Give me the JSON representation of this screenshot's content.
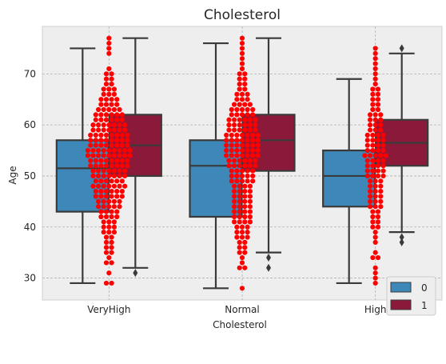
{
  "chart_data": {
    "type": "box",
    "title": "Cholesterol",
    "xlabel": "Cholesterol",
    "ylabel": "Age",
    "categories": [
      "VeryHigh",
      "Normal",
      "High"
    ],
    "ylim": [
      25.7,
      79.3
    ],
    "yticks": [
      30,
      40,
      50,
      60,
      70
    ],
    "grid": true,
    "legend": {
      "placement": "lower-right",
      "title": ""
    },
    "colors": {
      "0": "#3d88b8",
      "1": "#8b1a3a",
      "points": "#ff0000",
      "background": "#eeeeee"
    },
    "series": [
      {
        "name": "0",
        "boxes": [
          {
            "category": "VeryHigh",
            "min": 29,
            "q1": 43,
            "median": 51.5,
            "q3": 57,
            "max": 75,
            "outliers": []
          },
          {
            "category": "Normal",
            "min": 28,
            "q1": 42,
            "median": 52,
            "q3": 57,
            "max": 76,
            "outliers": []
          },
          {
            "category": "High",
            "min": 29,
            "q1": 44,
            "median": 50,
            "q3": 55,
            "max": 69,
            "outliers": []
          }
        ]
      },
      {
        "name": "1",
        "boxes": [
          {
            "category": "VeryHigh",
            "min": 32,
            "q1": 50,
            "median": 56,
            "q3": 62,
            "max": 77,
            "outliers": [
              31
            ]
          },
          {
            "category": "Normal",
            "min": 35,
            "q1": 51,
            "median": 57,
            "q3": 62,
            "max": 77,
            "outliers": [
              34,
              32
            ]
          },
          {
            "category": "High",
            "min": 39,
            "q1": 52,
            "median": 56.5,
            "q3": 61,
            "max": 74,
            "outliers": [
              75,
              38,
              37
            ]
          }
        ]
      }
    ],
    "swarm": [
      {
        "category": "VeryHigh",
        "ages": [
          29,
          29,
          31,
          33,
          33,
          34,
          35,
          35,
          36,
          36,
          37,
          37,
          38,
          38,
          39,
          39,
          39,
          40,
          40,
          40,
          41,
          41,
          41,
          42,
          42,
          42,
          42,
          43,
          43,
          43,
          43,
          44,
          44,
          44,
          44,
          44,
          45,
          45,
          45,
          45,
          45,
          46,
          46,
          46,
          46,
          46,
          46,
          47,
          47,
          47,
          47,
          47,
          47,
          48,
          48,
          48,
          48,
          48,
          48,
          48,
          49,
          49,
          49,
          49,
          49,
          49,
          50,
          50,
          50,
          50,
          50,
          50,
          50,
          51,
          51,
          51,
          51,
          51,
          51,
          51,
          52,
          52,
          52,
          52,
          52,
          52,
          52,
          52,
          53,
          53,
          53,
          53,
          53,
          53,
          53,
          53,
          54,
          54,
          54,
          54,
          54,
          54,
          54,
          54,
          54,
          55,
          55,
          55,
          55,
          55,
          55,
          55,
          55,
          55,
          56,
          56,
          56,
          56,
          56,
          56,
          56,
          56,
          57,
          57,
          57,
          57,
          57,
          57,
          57,
          57,
          58,
          58,
          58,
          58,
          58,
          58,
          58,
          58,
          59,
          59,
          59,
          59,
          59,
          59,
          59,
          60,
          60,
          60,
          60,
          60,
          60,
          60,
          61,
          61,
          61,
          61,
          61,
          61,
          62,
          62,
          62,
          62,
          62,
          62,
          63,
          63,
          63,
          63,
          63,
          64,
          64,
          64,
          64,
          65,
          65,
          65,
          65,
          66,
          66,
          66,
          67,
          67,
          67,
          68,
          68,
          69,
          69,
          70,
          70,
          71,
          74,
          75,
          76,
          77
        ]
      },
      {
        "category": "Normal",
        "ages": [
          28,
          32,
          32,
          33,
          34,
          35,
          35,
          36,
          36,
          37,
          37,
          38,
          38,
          38,
          39,
          39,
          39,
          40,
          40,
          40,
          41,
          41,
          41,
          41,
          42,
          42,
          42,
          42,
          43,
          43,
          43,
          43,
          44,
          44,
          44,
          44,
          45,
          45,
          45,
          45,
          46,
          46,
          46,
          46,
          47,
          47,
          47,
          47,
          48,
          48,
          48,
          48,
          49,
          49,
          49,
          49,
          49,
          50,
          50,
          50,
          50,
          50,
          51,
          51,
          51,
          51,
          51,
          52,
          52,
          52,
          52,
          52,
          52,
          53,
          53,
          53,
          53,
          53,
          53,
          54,
          54,
          54,
          54,
          54,
          54,
          54,
          55,
          55,
          55,
          55,
          55,
          55,
          55,
          56,
          56,
          56,
          56,
          56,
          56,
          56,
          57,
          57,
          57,
          57,
          57,
          57,
          57,
          58,
          58,
          58,
          58,
          58,
          58,
          58,
          59,
          59,
          59,
          59,
          59,
          59,
          60,
          60,
          60,
          60,
          60,
          60,
          61,
          61,
          61,
          61,
          61,
          61,
          62,
          62,
          62,
          62,
          62,
          63,
          63,
          63,
          63,
          63,
          64,
          64,
          64,
          64,
          65,
          65,
          65,
          66,
          66,
          66,
          67,
          67,
          68,
          68,
          69,
          69,
          70,
          70,
          71,
          72,
          73,
          74,
          75,
          76,
          77
        ]
      },
      {
        "category": "High",
        "ages": [
          29,
          30,
          31,
          32,
          34,
          34,
          35,
          37,
          38,
          39,
          40,
          40,
          41,
          41,
          42,
          42,
          43,
          43,
          44,
          44,
          44,
          45,
          45,
          45,
          46,
          46,
          46,
          47,
          47,
          47,
          48,
          48,
          48,
          49,
          49,
          49,
          50,
          50,
          50,
          50,
          51,
          51,
          51,
          51,
          52,
          52,
          52,
          52,
          53,
          53,
          53,
          53,
          54,
          54,
          54,
          54,
          54,
          55,
          55,
          55,
          55,
          56,
          56,
          56,
          56,
          57,
          57,
          57,
          57,
          58,
          58,
          58,
          58,
          59,
          59,
          59,
          60,
          60,
          60,
          61,
          61,
          61,
          62,
          62,
          62,
          63,
          63,
          64,
          64,
          65,
          65,
          66,
          66,
          67,
          67,
          68,
          69,
          70,
          71,
          72,
          73,
          74,
          75
        ]
      }
    ]
  }
}
